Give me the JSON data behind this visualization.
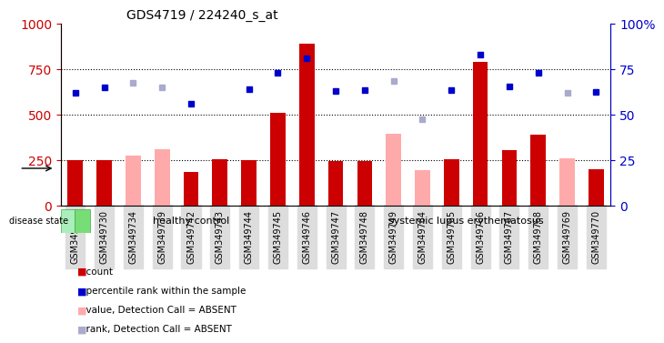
{
  "title": "GDS4719 / 224240_s_at",
  "samples": [
    "GSM349729",
    "GSM349730",
    "GSM349734",
    "GSM349739",
    "GSM349742",
    "GSM349743",
    "GSM349744",
    "GSM349745",
    "GSM349746",
    "GSM349747",
    "GSM349748",
    "GSM349749",
    "GSM349764",
    "GSM349765",
    "GSM349766",
    "GSM349767",
    "GSM349768",
    "GSM349769",
    "GSM349770"
  ],
  "healthy_count": 9,
  "count_bars": [
    250,
    250,
    null,
    null,
    185,
    255,
    250,
    510,
    890,
    245,
    245,
    null,
    null,
    255,
    790,
    305,
    390,
    null,
    200
  ],
  "absent_value_bars": [
    null,
    null,
    275,
    310,
    null,
    null,
    null,
    null,
    null,
    null,
    null,
    395,
    195,
    null,
    null,
    null,
    null,
    260,
    null
  ],
  "percentile_rank": [
    620,
    650,
    null,
    null,
    560,
    null,
    640,
    730,
    810,
    630,
    635,
    null,
    null,
    635,
    830,
    655,
    730,
    null,
    625
  ],
  "absent_rank": [
    null,
    null,
    675,
    650,
    null,
    null,
    null,
    null,
    null,
    null,
    null,
    685,
    475,
    null,
    null,
    null,
    null,
    620,
    null
  ],
  "ylim_left": [
    0,
    1000
  ],
  "ylim_right": [
    0,
    100
  ],
  "yticks_left": [
    0,
    250,
    500,
    750,
    1000
  ],
  "yticks_right": [
    0,
    25,
    50,
    75,
    100
  ],
  "bar_color_red": "#cc0000",
  "bar_color_pink": "#ffaaaa",
  "dot_color_blue": "#0000cc",
  "dot_color_lightblue": "#aaaacc",
  "healthy_label": "healthy control",
  "disease_label": "systemic lupus erythematosus",
  "disease_state_label": "disease state",
  "legend_count": "count",
  "legend_percentile": "percentile rank within the sample",
  "legend_absent_value": "value, Detection Call = ABSENT",
  "legend_absent_rank": "rank, Detection Call = ABSENT",
  "bg_color": "#ffffff",
  "plot_bg_color": "#ffffff",
  "grid_color": "#000000",
  "tick_bg_color": "#dddddd",
  "healthy_bg": "#99ee99",
  "disease_bg": "#66dd66"
}
